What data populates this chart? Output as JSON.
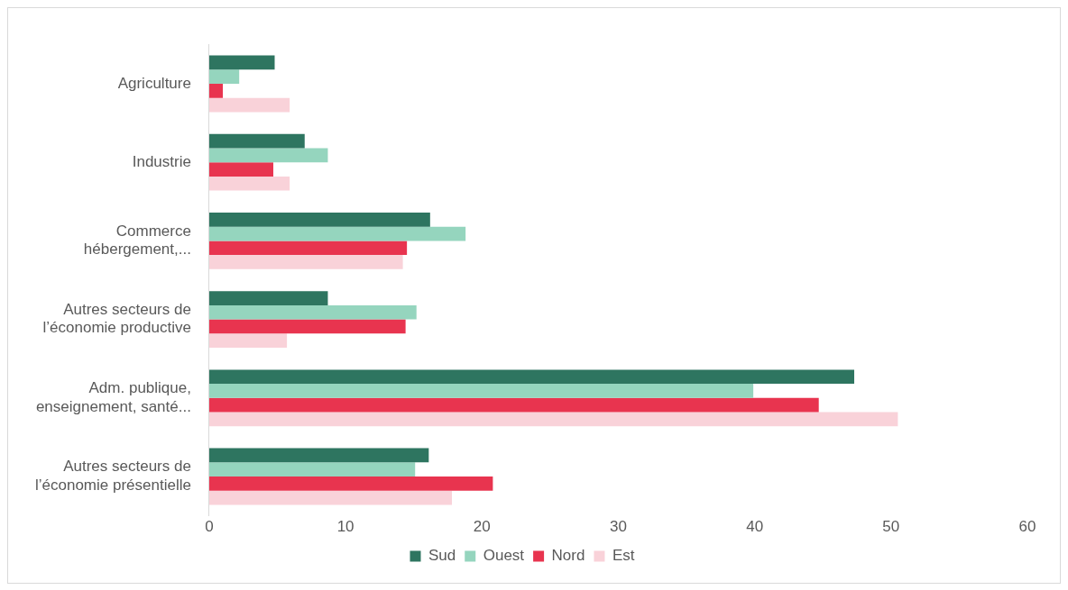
{
  "chart_data": {
    "type": "bar",
    "orientation": "horizontal",
    "categories": [
      "Agriculture",
      "Industrie",
      "Commerce\nhébergement,...",
      "Autres secteurs de\nl’économie productive",
      "Adm. publique,\nenseignement, santé...",
      "Autres secteurs de\nl’économie présentielle"
    ],
    "series": [
      {
        "name": "Sud",
        "color": "#2e7560",
        "values": [
          4.8,
          7.0,
          16.2,
          8.7,
          47.3,
          16.1
        ]
      },
      {
        "name": "Ouest",
        "color": "#95d5be",
        "values": [
          2.2,
          8.7,
          18.8,
          15.2,
          39.9,
          15.1
        ]
      },
      {
        "name": "Nord",
        "color": "#e8344f",
        "values": [
          1.0,
          4.7,
          14.5,
          14.4,
          44.7,
          20.8
        ]
      },
      {
        "name": "Est",
        "color": "#f9d2d9",
        "values": [
          5.9,
          5.9,
          14.2,
          5.7,
          50.5,
          17.8
        ]
      }
    ],
    "xlim": [
      0,
      60
    ],
    "xticks": [
      0,
      10,
      20,
      30,
      40,
      50,
      60
    ],
    "grid": false,
    "legend": "bottom"
  }
}
